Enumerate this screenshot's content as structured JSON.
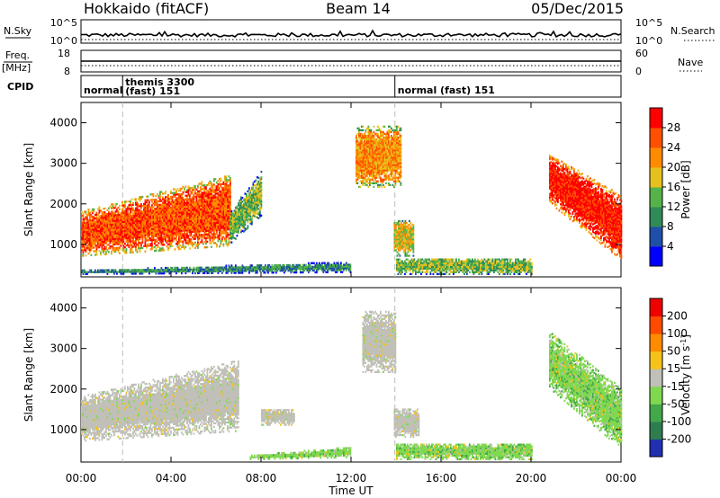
{
  "header": {
    "station": "Hokkaido (fitACF)",
    "beam": "Beam 14",
    "date": "05/Dec/2015"
  },
  "top_panels": {
    "nsky_label": "N.Sky",
    "nsky_ticks": [
      "10^5",
      "10^0"
    ],
    "nsearch_label": "N.Search",
    "freq_label": "Freq.",
    "freq_unit": "[MHz]",
    "freq_ticks": [
      "18",
      "8"
    ],
    "nave_label": "Nave",
    "nave_ticks": [
      "60",
      "0"
    ],
    "cpid_label": "CPID",
    "cpid_segments": [
      {
        "start_hour": 0.0,
        "label": "normal"
      },
      {
        "start_hour": 1.85,
        "label": "themis 3300",
        "label2": "(fast) 151"
      },
      {
        "start_hour": 13.95,
        "label": "normal (fast) 151"
      }
    ]
  },
  "chart_data": [
    {
      "type": "heatmap",
      "name": "power",
      "ylabel": "Slant Range [km]",
      "y_ticks": [
        "1000",
        "2000",
        "3000",
        "4000"
      ],
      "ylim": [
        200,
        4500
      ],
      "xlim": [
        0,
        24
      ],
      "colorbar": {
        "label": "Power [dB]",
        "ticks": [
          "4",
          "8",
          "12",
          "16",
          "20",
          "24",
          "28"
        ],
        "colors": [
          "#0000ff",
          "#1f4fa8",
          "#2e8b57",
          "#55b34a",
          "#e6c01e",
          "#ff8c00",
          "#ff5000",
          "#ff0000"
        ]
      },
      "regions": [
        {
          "t": [
            0.0,
            6.6
          ],
          "r_lo": [
            700,
            950
          ],
          "r_hi": [
            1800,
            2700
          ],
          "level": 6
        },
        {
          "t": [
            6.6,
            8.0
          ],
          "r_lo": [
            1000,
            1700
          ],
          "r_hi": [
            1800,
            2800
          ],
          "level": 3
        },
        {
          "t": [
            0.0,
            12.0
          ],
          "r_lo": [
            250,
            300
          ],
          "r_hi": [
            350,
            550
          ],
          "level": 2
        },
        {
          "t": [
            12.2,
            14.2
          ],
          "r_lo": [
            2400,
            2400
          ],
          "r_hi": [
            3900,
            3900
          ],
          "level": 5
        },
        {
          "t": [
            13.9,
            14.8
          ],
          "r_lo": [
            700,
            700
          ],
          "r_hi": [
            1600,
            1600
          ],
          "level": 4
        },
        {
          "t": [
            14.0,
            20.0
          ],
          "r_lo": [
            250,
            250
          ],
          "r_hi": [
            650,
            650
          ],
          "level": 3
        },
        {
          "t": [
            20.8,
            24.0
          ],
          "r_lo": [
            2000,
            600
          ],
          "r_hi": [
            3200,
            2200
          ],
          "level": 7
        }
      ]
    },
    {
      "type": "heatmap",
      "name": "velocity",
      "ylabel": "Slant Range [km]",
      "y_ticks": [
        "1000",
        "2000",
        "3000",
        "4000"
      ],
      "ylim": [
        200,
        4500
      ],
      "xlim": [
        0,
        24
      ],
      "colorbar": {
        "label": "Velocity [m s^-1]",
        "ticks": [
          "200",
          "100",
          "50",
          "15",
          "-15",
          "-50",
          "-100",
          "-200"
        ],
        "colors": [
          "#2030b0",
          "#2e7d4f",
          "#43a84a",
          "#7fd84f",
          "#c0c0b8",
          "#f5c21a",
          "#ff8c00",
          "#ff4a00",
          "#ee0000"
        ]
      },
      "regions": [
        {
          "t": [
            0.0,
            7.0
          ],
          "r_lo": [
            700,
            950
          ],
          "r_hi": [
            1800,
            2700
          ],
          "class": "gray"
        },
        {
          "t": [
            8.0,
            9.5
          ],
          "r_lo": [
            1100,
            1100
          ],
          "r_hi": [
            1500,
            1500
          ],
          "class": "gray"
        },
        {
          "t": [
            7.5,
            12.0
          ],
          "r_lo": [
            250,
            300
          ],
          "r_hi": [
            350,
            550
          ],
          "class": "green"
        },
        {
          "t": [
            12.5,
            14.0
          ],
          "r_lo": [
            2400,
            2400
          ],
          "r_hi": [
            3900,
            3900
          ],
          "class": "gray"
        },
        {
          "t": [
            13.9,
            15.0
          ],
          "r_lo": [
            800,
            800
          ],
          "r_hi": [
            1500,
            1500
          ],
          "class": "gray"
        },
        {
          "t": [
            14.0,
            20.0
          ],
          "r_lo": [
            250,
            250
          ],
          "r_hi": [
            650,
            650
          ],
          "class": "green"
        },
        {
          "t": [
            20.8,
            24.0
          ],
          "r_lo": [
            2000,
            500
          ],
          "r_hi": [
            3400,
            2000
          ],
          "class": "green"
        }
      ]
    }
  ],
  "time_axis": {
    "ticks": [
      "00:00",
      "04:00",
      "08:00",
      "12:00",
      "16:00",
      "20:00",
      "00:00"
    ],
    "label": "Time UT"
  }
}
